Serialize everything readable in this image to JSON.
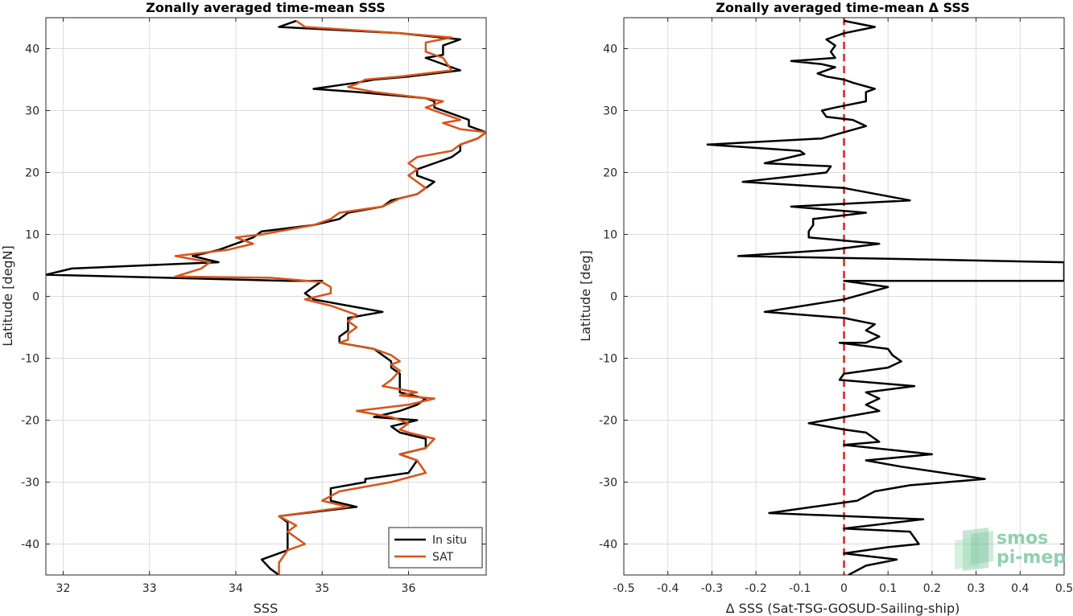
{
  "chart_data": [
    {
      "type": "line",
      "title": "Zonally averaged time-mean SSS",
      "xlabel": "SSS",
      "ylabel": "Latitude [degN]",
      "xlim": [
        31.8,
        36.9
      ],
      "ylim": [
        -45,
        45
      ],
      "xticks": [
        32,
        33,
        34,
        35,
        36
      ],
      "yticks": [
        -40,
        -30,
        -20,
        -10,
        0,
        10,
        20,
        30,
        40
      ],
      "grid": true,
      "legend": "bottom-right",
      "series": [
        {
          "name": "In situ",
          "color": "#000000",
          "points": [
            [
              34.7,
              44.5
            ],
            [
              34.5,
              43.5
            ],
            [
              35.9,
              42.5
            ],
            [
              36.6,
              41.5
            ],
            [
              36.4,
              40.5
            ],
            [
              36.4,
              39.0
            ],
            [
              36.2,
              38.5
            ],
            [
              36.6,
              36.5
            ],
            [
              36.0,
              35.5
            ],
            [
              35.6,
              35.0
            ],
            [
              35.4,
              34.5
            ],
            [
              34.9,
              33.5
            ],
            [
              35.4,
              33.0
            ],
            [
              36.2,
              32.0
            ],
            [
              36.3,
              31.5
            ],
            [
              36.3,
              30.5
            ],
            [
              36.5,
              29.5
            ],
            [
              36.7,
              28.5
            ],
            [
              36.7,
              27.5
            ],
            [
              36.9,
              26.5
            ],
            [
              36.8,
              25.5
            ],
            [
              36.6,
              24.5
            ],
            [
              36.6,
              23.5
            ],
            [
              36.5,
              22.5
            ],
            [
              36.3,
              21.5
            ],
            [
              36.1,
              20.5
            ],
            [
              36.1,
              19.5
            ],
            [
              36.3,
              18.5
            ],
            [
              36.2,
              17.5
            ],
            [
              36.1,
              16.5
            ],
            [
              35.8,
              15.5
            ],
            [
              35.7,
              14.5
            ],
            [
              35.3,
              13.5
            ],
            [
              35.2,
              12.5
            ],
            [
              34.9,
              11.5
            ],
            [
              34.3,
              10.5
            ],
            [
              34.2,
              9.5
            ],
            [
              34.0,
              8.5
            ],
            [
              33.8,
              7.5
            ],
            [
              33.5,
              6.5
            ],
            [
              33.8,
              5.5
            ],
            [
              32.1,
              4.5
            ],
            [
              31.8,
              3.5
            ],
            [
              34.6,
              2.5
            ],
            [
              35.0,
              2.5
            ],
            [
              34.9,
              1.5
            ],
            [
              34.8,
              0.5
            ],
            [
              34.9,
              -0.5
            ],
            [
              35.3,
              -1.5
            ],
            [
              35.7,
              -2.5
            ],
            [
              35.3,
              -3.5
            ],
            [
              35.3,
              -4.5
            ],
            [
              35.3,
              -5.5
            ],
            [
              35.2,
              -6.5
            ],
            [
              35.2,
              -7.5
            ],
            [
              35.6,
              -8.5
            ],
            [
              35.7,
              -9.5
            ],
            [
              35.8,
              -10.5
            ],
            [
              35.8,
              -11.5
            ],
            [
              35.9,
              -12.5
            ],
            [
              35.9,
              -13.5
            ],
            [
              35.9,
              -14.5
            ],
            [
              35.9,
              -15.5
            ],
            [
              36.2,
              -16.5
            ],
            [
              36.1,
              -17.5
            ],
            [
              35.9,
              -18.5
            ],
            [
              35.6,
              -19.5
            ],
            [
              36.1,
              -20.0
            ],
            [
              35.8,
              -21.0
            ],
            [
              35.9,
              -22.0
            ],
            [
              36.2,
              -23.0
            ],
            [
              36.2,
              -24.5
            ],
            [
              35.9,
              -25.5
            ],
            [
              36.1,
              -26.5
            ],
            [
              36.0,
              -28.5
            ],
            [
              35.5,
              -29.5
            ],
            [
              35.5,
              -30.0
            ],
            [
              35.1,
              -31.0
            ],
            [
              35.1,
              -33.0
            ],
            [
              35.4,
              -34.0
            ],
            [
              34.5,
              -35.5
            ],
            [
              34.6,
              -36.5
            ],
            [
              34.6,
              -37.5
            ],
            [
              34.6,
              -39.0
            ],
            [
              34.6,
              -41.0
            ],
            [
              34.3,
              -42.5
            ],
            [
              34.4,
              -44.0
            ],
            [
              34.5,
              -45.0
            ]
          ]
        },
        {
          "name": "SAT",
          "color": "#d95319",
          "points": [
            [
              34.7,
              44.5
            ],
            [
              34.8,
              43.5
            ],
            [
              35.9,
              42.5
            ],
            [
              36.5,
              41.8
            ],
            [
              36.2,
              41.0
            ],
            [
              36.2,
              39.5
            ],
            [
              36.4,
              38.5
            ],
            [
              36.5,
              36.5
            ],
            [
              35.9,
              35.5
            ],
            [
              35.5,
              35.0
            ],
            [
              35.4,
              34.3
            ],
            [
              35.3,
              33.8
            ],
            [
              35.6,
              33.0
            ],
            [
              36.2,
              32.0
            ],
            [
              36.4,
              31.5
            ],
            [
              36.2,
              30.5
            ],
            [
              36.6,
              28.5
            ],
            [
              36.4,
              28.0
            ],
            [
              36.6,
              27.0
            ],
            [
              36.9,
              26.5
            ],
            [
              36.8,
              25.5
            ],
            [
              36.6,
              24.5
            ],
            [
              36.5,
              23.5
            ],
            [
              36.1,
              22.5
            ],
            [
              36.0,
              21.5
            ],
            [
              36.1,
              20.5
            ],
            [
              36.0,
              19.5
            ],
            [
              36.1,
              18.5
            ],
            [
              36.2,
              17.5
            ],
            [
              36.1,
              16.5
            ],
            [
              35.9,
              15.8
            ],
            [
              35.7,
              14.5
            ],
            [
              35.2,
              13.5
            ],
            [
              35.1,
              12.5
            ],
            [
              34.9,
              11.5
            ],
            [
              34.3,
              10.0
            ],
            [
              34.0,
              9.5
            ],
            [
              34.2,
              8.5
            ],
            [
              33.9,
              7.5
            ],
            [
              33.3,
              6.5
            ],
            [
              33.7,
              5.5
            ],
            [
              33.6,
              4.5
            ],
            [
              33.3,
              3.2
            ],
            [
              34.4,
              3.0
            ],
            [
              35.0,
              2.3
            ],
            [
              35.1,
              1.5
            ],
            [
              35.1,
              0.5
            ],
            [
              34.8,
              -0.5
            ],
            [
              35.1,
              -1.5
            ],
            [
              35.4,
              -3.0
            ],
            [
              35.3,
              -4.0
            ],
            [
              35.4,
              -5.0
            ],
            [
              35.3,
              -6.0
            ],
            [
              35.3,
              -7.0
            ],
            [
              35.2,
              -7.5
            ],
            [
              35.6,
              -8.5
            ],
            [
              35.8,
              -9.5
            ],
            [
              35.9,
              -10.5
            ],
            [
              35.8,
              -11.0
            ],
            [
              35.9,
              -12.0
            ],
            [
              35.8,
              -13.5
            ],
            [
              35.7,
              -14.5
            ],
            [
              36.1,
              -15.5
            ],
            [
              35.9,
              -16.0
            ],
            [
              36.3,
              -16.5
            ],
            [
              36.0,
              -17.5
            ],
            [
              35.4,
              -18.5
            ],
            [
              35.8,
              -19.5
            ],
            [
              36.0,
              -20.5
            ],
            [
              35.9,
              -21.5
            ],
            [
              36.0,
              -22.0
            ],
            [
              36.3,
              -23.0
            ],
            [
              36.2,
              -24.5
            ],
            [
              35.9,
              -25.5
            ],
            [
              36.1,
              -26.5
            ],
            [
              36.2,
              -28.5
            ],
            [
              35.8,
              -30.0
            ],
            [
              35.2,
              -31.5
            ],
            [
              35.0,
              -33.0
            ],
            [
              35.3,
              -34.0
            ],
            [
              34.5,
              -35.5
            ],
            [
              34.7,
              -37.0
            ],
            [
              34.6,
              -38.0
            ],
            [
              34.8,
              -40.0
            ],
            [
              34.6,
              -41.0
            ],
            [
              34.5,
              -43.0
            ],
            [
              34.5,
              -45.0
            ]
          ]
        }
      ]
    },
    {
      "type": "line",
      "title": "Zonally averaged time-mean Δ SSS",
      "xlabel": "Δ SSS (Sat-TSG-GOSUD-Sailing-ship)",
      "ylabel": "Latitude [deg]",
      "xlim": [
        -0.5,
        0.5
      ],
      "ylim": [
        -45,
        45
      ],
      "xticks": [
        -0.5,
        -0.4,
        -0.3,
        -0.2,
        -0.1,
        0,
        0.1,
        0.2,
        0.3,
        0.4,
        0.5
      ],
      "xticklabels": [
        "-0.5",
        "-0.4",
        "-0.3",
        "-0.2",
        "-0.1",
        "0",
        "0.1",
        "0.2",
        "0.3",
        "0.4",
        "0.5"
      ],
      "yticks": [
        -40,
        -30,
        -20,
        -10,
        0,
        10,
        20,
        30,
        40
      ],
      "grid": true,
      "zero_line_color": "#e0201b",
      "series": [
        {
          "color": "#000000",
          "points": [
            [
              0.0,
              44.5
            ],
            [
              0.07,
              43.5
            ],
            [
              0.0,
              42.5
            ],
            [
              -0.04,
              41.5
            ],
            [
              -0.02,
              40.5
            ],
            [
              -0.03,
              39.5
            ],
            [
              -0.02,
              38.5
            ],
            [
              -0.12,
              38.0
            ],
            [
              -0.05,
              37.5
            ],
            [
              -0.02,
              37.0
            ],
            [
              -0.06,
              36.0
            ],
            [
              -0.04,
              35.5
            ],
            [
              0.0,
              35.0
            ],
            [
              0.02,
              34.5
            ],
            [
              0.07,
              33.5
            ],
            [
              0.05,
              33.0
            ],
            [
              0.05,
              31.5
            ],
            [
              -0.02,
              30.5
            ],
            [
              -0.05,
              30.0
            ],
            [
              -0.04,
              29.0
            ],
            [
              0.02,
              28.5
            ],
            [
              0.05,
              27.5
            ],
            [
              0.0,
              26.5
            ],
            [
              -0.05,
              25.5
            ],
            [
              -0.31,
              24.5
            ],
            [
              -0.1,
              23.5
            ],
            [
              -0.09,
              23.0
            ],
            [
              -0.18,
              21.5
            ],
            [
              -0.03,
              21.0
            ],
            [
              -0.04,
              20.0
            ],
            [
              -0.23,
              18.5
            ],
            [
              0.0,
              17.5
            ],
            [
              0.15,
              15.5
            ],
            [
              -0.12,
              14.5
            ],
            [
              0.05,
              13.5
            ],
            [
              -0.07,
              12.5
            ],
            [
              -0.07,
              11.5
            ],
            [
              -0.08,
              10.5
            ],
            [
              -0.08,
              9.5
            ],
            [
              0.08,
              8.5
            ],
            [
              -0.03,
              7.5
            ],
            [
              -0.24,
              6.5
            ],
            [
              0.15,
              6.0
            ],
            [
              0.5,
              5.5
            ],
            [
              0.5,
              2.5
            ],
            [
              0.0,
              2.5
            ],
            [
              0.1,
              1.5
            ],
            [
              0.05,
              0.5
            ],
            [
              0.0,
              -0.5
            ],
            [
              -0.18,
              -2.5
            ],
            [
              0.0,
              -3.5
            ],
            [
              0.07,
              -4.5
            ],
            [
              0.05,
              -5.5
            ],
            [
              0.08,
              -6.5
            ],
            [
              0.05,
              -7.5
            ],
            [
              -0.01,
              -7.5
            ],
            [
              0.1,
              -8.5
            ],
            [
              0.11,
              -9.5
            ],
            [
              0.13,
              -10.5
            ],
            [
              0.1,
              -11.5
            ],
            [
              0.0,
              -12.5
            ],
            [
              -0.01,
              -13.5
            ],
            [
              0.16,
              -14.5
            ],
            [
              0.05,
              -15.5
            ],
            [
              0.08,
              -16.5
            ],
            [
              0.05,
              -17.5
            ],
            [
              0.08,
              -18.5
            ],
            [
              0.0,
              -19.5
            ],
            [
              -0.08,
              -20.5
            ],
            [
              0.0,
              -21.5
            ],
            [
              0.05,
              -22.0
            ],
            [
              0.08,
              -23.5
            ],
            [
              0.0,
              -24.0
            ],
            [
              0.2,
              -25.5
            ],
            [
              0.05,
              -26.5
            ],
            [
              0.13,
              -27.5
            ],
            [
              0.32,
              -29.5
            ],
            [
              0.15,
              -30.5
            ],
            [
              0.07,
              -31.5
            ],
            [
              0.03,
              -33.0
            ],
            [
              -0.07,
              -34.0
            ],
            [
              -0.17,
              -35.0
            ],
            [
              0.18,
              -36.0
            ],
            [
              0.0,
              -37.5
            ],
            [
              0.15,
              -38.0
            ],
            [
              0.17,
              -40.0
            ],
            [
              0.1,
              -40.5
            ],
            [
              0.0,
              -41.5
            ],
            [
              0.12,
              -42.5
            ],
            [
              0.05,
              -43.5
            ],
            [
              0.01,
              -45.0
            ]
          ]
        }
      ]
    }
  ],
  "logo": {
    "line1": "smos",
    "line2": "pi-mep",
    "color": "#7cc9a0"
  }
}
